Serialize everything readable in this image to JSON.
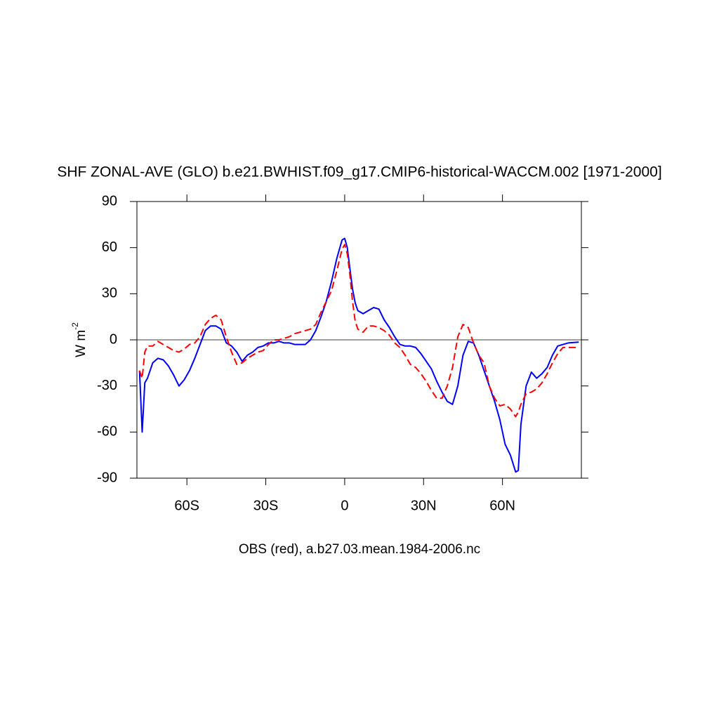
{
  "chart_data": {
    "type": "line",
    "title": "SHF ZONAL-AVE (GLO) b.e21.BWHIST.f09_g17.CMIP6-historical-WACCM.002 [1971-2000]",
    "xlabel": "OBS (red), a.b27.03.mean.1984-2006.nc",
    "ylabel": "W m",
    "ylabel_superscript": "-2",
    "x": [
      -78,
      -77,
      -76,
      -75,
      -73,
      -71,
      -69,
      -67,
      -65,
      -63,
      -61,
      -59,
      -57,
      -55,
      -53,
      -51,
      -49,
      -47,
      -45,
      -43,
      -41,
      -39,
      -37,
      -35,
      -33,
      -31,
      -29,
      -27,
      -25,
      -23,
      -21,
      -19,
      -17,
      -15,
      -13,
      -11,
      -9,
      -7,
      -5,
      -3,
      -1,
      0,
      1,
      2,
      3,
      4,
      5,
      7,
      9,
      11,
      13,
      15,
      17,
      19,
      21,
      23,
      25,
      27,
      29,
      31,
      33,
      35,
      37,
      39,
      41,
      43,
      45,
      47,
      49,
      51,
      53,
      55,
      57,
      59,
      61,
      63,
      65,
      66,
      67,
      69,
      71,
      73,
      75,
      77,
      79,
      81,
      83,
      85,
      89
    ],
    "series": [
      {
        "color": "#0000ff",
        "dash": false,
        "values": [
          -20,
          -60,
          -28,
          -25,
          -15,
          -12,
          -13,
          -17,
          -23,
          -30,
          -26,
          -20,
          -12,
          -3,
          6,
          9,
          9,
          7,
          -2,
          -4,
          -8,
          -14,
          -10,
          -8,
          -5,
          -4,
          -2,
          -2,
          -1,
          -2,
          -2,
          -3,
          -3,
          -3,
          0,
          6,
          15,
          25,
          38,
          53,
          65,
          66,
          60,
          46,
          33,
          24,
          19,
          17,
          19,
          21,
          20,
          13,
          8,
          2,
          -3,
          -4,
          -4,
          -5,
          -9,
          -14,
          -19,
          -27,
          -34,
          -40,
          -42,
          -30,
          -10,
          -1,
          -2,
          -10,
          -20,
          -30,
          -40,
          -52,
          -68,
          -75,
          -86,
          -85,
          -55,
          -30,
          -21,
          -25,
          -22,
          -18,
          -10,
          -4,
          -3,
          -2,
          -1.5
        ]
      },
      {
        "color": "#ff0000",
        "dash": true,
        "values": [
          -20,
          -25,
          -8,
          -4,
          -4,
          -1,
          -3,
          -5,
          -7,
          -8,
          -6,
          -3,
          -2,
          2,
          10,
          14,
          16,
          13,
          2,
          -8,
          -16,
          -15,
          -12,
          -10,
          -8,
          -7,
          -3,
          0,
          0,
          1,
          2,
          4,
          5,
          6,
          7,
          10,
          18,
          25,
          32,
          45,
          59,
          62,
          56,
          42,
          25,
          12,
          7,
          5,
          9,
          9,
          8,
          6,
          3,
          -2,
          -5,
          -10,
          -16,
          -18,
          -22,
          -27,
          -33,
          -38,
          -38,
          -30,
          -18,
          2,
          10,
          8,
          -2,
          -10,
          -15,
          -30,
          -38,
          -43,
          -42,
          -45,
          -50,
          -47,
          -42,
          -35,
          -34,
          -32,
          -28,
          -22,
          -15,
          -9,
          -5,
          -5,
          -5
        ]
      }
    ],
    "xlim": [
      -79,
      90
    ],
    "xticks": [
      {
        "value": -60,
        "label": "60S"
      },
      {
        "value": -30,
        "label": "30S"
      },
      0,
      {
        "value": 30,
        "label": "30N"
      },
      {
        "value": 60,
        "label": "60N"
      }
    ],
    "ylim": [
      -90,
      90
    ],
    "yticks": [
      -90,
      -60,
      -30,
      0,
      30,
      60,
      90
    ],
    "reference_line": 0
  }
}
